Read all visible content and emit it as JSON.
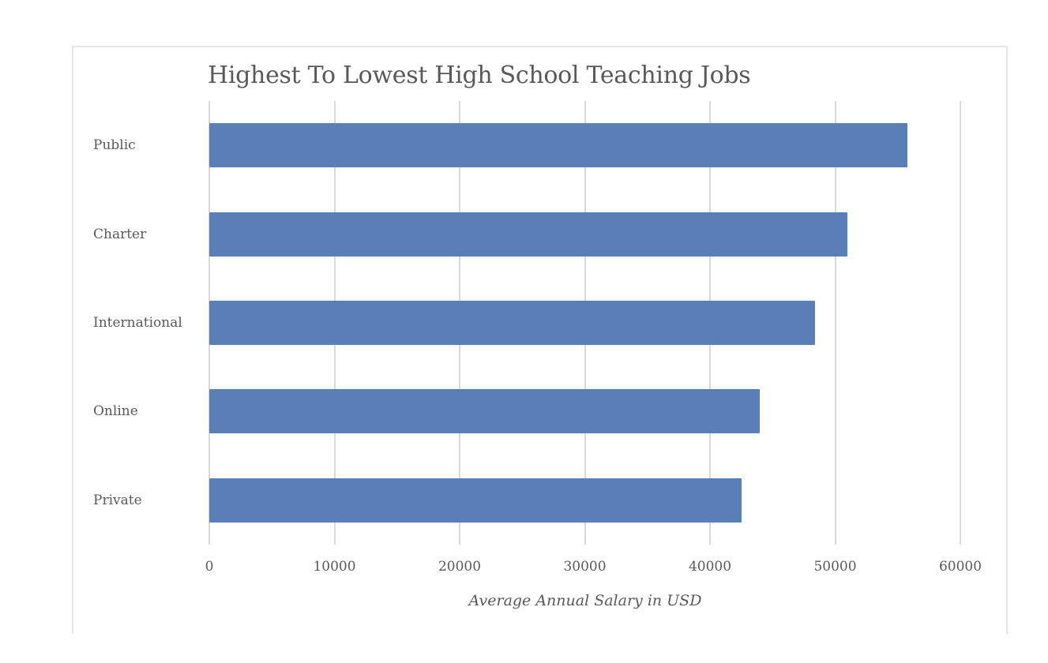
{
  "chart_data": {
    "type": "bar",
    "orientation": "horizontal",
    "title": "Highest To Lowest High School Teaching Jobs",
    "xlabel": "Average Annual Salary in USD",
    "ylabel": "",
    "categories": [
      "Public",
      "Charter",
      "International",
      "Online",
      "Private"
    ],
    "values": [
      55800,
      51000,
      48400,
      44000,
      42500
    ],
    "xlim": [
      0,
      60000
    ],
    "xticks": [
      "0",
      "10000",
      "20000",
      "30000",
      "40000",
      "50000",
      "60000"
    ],
    "grid": true,
    "legend": null,
    "bar_color": "#5a7fb6"
  }
}
